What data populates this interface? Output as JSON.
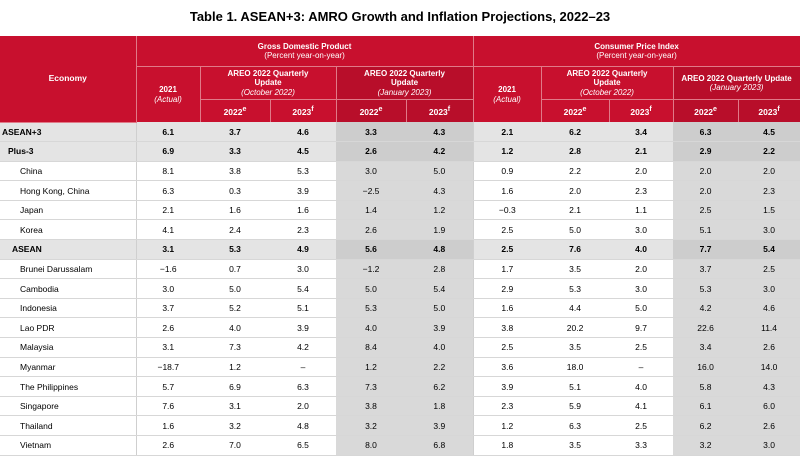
{
  "title": "Table 1. ASEAN+3: AMRO Growth and Inflation Projections, 2022–23",
  "header": {
    "economy": "Economy",
    "gdp": "Gross Domestic Product",
    "cpi": "Consumer Price Index",
    "pct": "(Percent year-on-year)",
    "year2021": "2021",
    "actual": "(Actual)",
    "areo": "AREO 2022 Quarterly Update",
    "areo_oct_a": "AREO 2022 Quarterly",
    "areo_oct_b": "Update",
    "oct": "(October 2022)",
    "jan": "(January 2023)",
    "y2022": "2022",
    "y2023": "2023",
    "sup_e": "e",
    "sup_f": "f"
  },
  "rows": [
    {
      "name": "ASEAN+3",
      "agg": "top",
      "v": [
        "6.1",
        "3.7",
        "4.6",
        "3.3",
        "4.3",
        "2.1",
        "6.2",
        "3.4",
        "6.3",
        "4.5"
      ]
    },
    {
      "name": "Plus-3",
      "agg": "mid",
      "v": [
        "6.9",
        "3.3",
        "4.5",
        "2.6",
        "4.2",
        "1.2",
        "2.8",
        "2.1",
        "2.9",
        "2.2"
      ]
    },
    {
      "name": "China",
      "v": [
        "8.1",
        "3.8",
        "5.3",
        "3.0",
        "5.0",
        "0.9",
        "2.2",
        "2.0",
        "2.0",
        "2.0"
      ]
    },
    {
      "name": "Hong Kong, China",
      "v": [
        "6.3",
        "0.3",
        "3.9",
        "−2.5",
        "4.3",
        "1.6",
        "2.0",
        "2.3",
        "2.0",
        "2.3"
      ]
    },
    {
      "name": "Japan",
      "v": [
        "2.1",
        "1.6",
        "1.6",
        "1.4",
        "1.2",
        "−0.3",
        "2.1",
        "1.1",
        "2.5",
        "1.5"
      ]
    },
    {
      "name": "Korea",
      "v": [
        "4.1",
        "2.4",
        "2.3",
        "2.6",
        "1.9",
        "2.5",
        "5.0",
        "3.0",
        "5.1",
        "3.0"
      ]
    },
    {
      "name": "ASEAN",
      "agg": "asean",
      "v": [
        "3.1",
        "5.3",
        "4.9",
        "5.6",
        "4.8",
        "2.5",
        "7.6",
        "4.0",
        "7.7",
        "5.4"
      ]
    },
    {
      "name": "Brunei Darussalam",
      "v": [
        "−1.6",
        "0.7",
        "3.0",
        "−1.2",
        "2.8",
        "1.7",
        "3.5",
        "2.0",
        "3.7",
        "2.5"
      ]
    },
    {
      "name": "Cambodia",
      "v": [
        "3.0",
        "5.0",
        "5.4",
        "5.0",
        "5.4",
        "2.9",
        "5.3",
        "3.0",
        "5.3",
        "3.0"
      ]
    },
    {
      "name": "Indonesia",
      "v": [
        "3.7",
        "5.2",
        "5.1",
        "5.3",
        "5.0",
        "1.6",
        "4.4",
        "5.0",
        "4.2",
        "4.6"
      ]
    },
    {
      "name": "Lao PDR",
      "v": [
        "2.6",
        "4.0",
        "3.9",
        "4.0",
        "3.9",
        "3.8",
        "20.2",
        "9.7",
        "22.6",
        "11.4"
      ]
    },
    {
      "name": "Malaysia",
      "v": [
        "3.1",
        "7.3",
        "4.2",
        "8.4",
        "4.0",
        "2.5",
        "3.5",
        "2.5",
        "3.4",
        "2.6"
      ]
    },
    {
      "name": "Myanmar",
      "v": [
        "−18.7",
        "1.2",
        "–",
        "1.2",
        "2.2",
        "3.6",
        "18.0",
        "–",
        "16.0",
        "14.0"
      ]
    },
    {
      "name": "The Philippines",
      "v": [
        "5.7",
        "6.9",
        "6.3",
        "7.3",
        "6.2",
        "3.9",
        "5.1",
        "4.0",
        "5.8",
        "4.3"
      ]
    },
    {
      "name": "Singapore",
      "v": [
        "7.6",
        "3.1",
        "2.0",
        "3.8",
        "1.8",
        "2.3",
        "5.9",
        "4.1",
        "6.1",
        "6.0"
      ]
    },
    {
      "name": "Thailand",
      "v": [
        "1.6",
        "3.2",
        "4.8",
        "3.2",
        "3.9",
        "1.2",
        "6.3",
        "2.5",
        "6.2",
        "2.6"
      ]
    },
    {
      "name": "Vietnam",
      "v": [
        "2.6",
        "7.0",
        "6.5",
        "8.0",
        "6.8",
        "1.8",
        "3.5",
        "3.3",
        "3.2",
        "3.0"
      ]
    }
  ]
}
